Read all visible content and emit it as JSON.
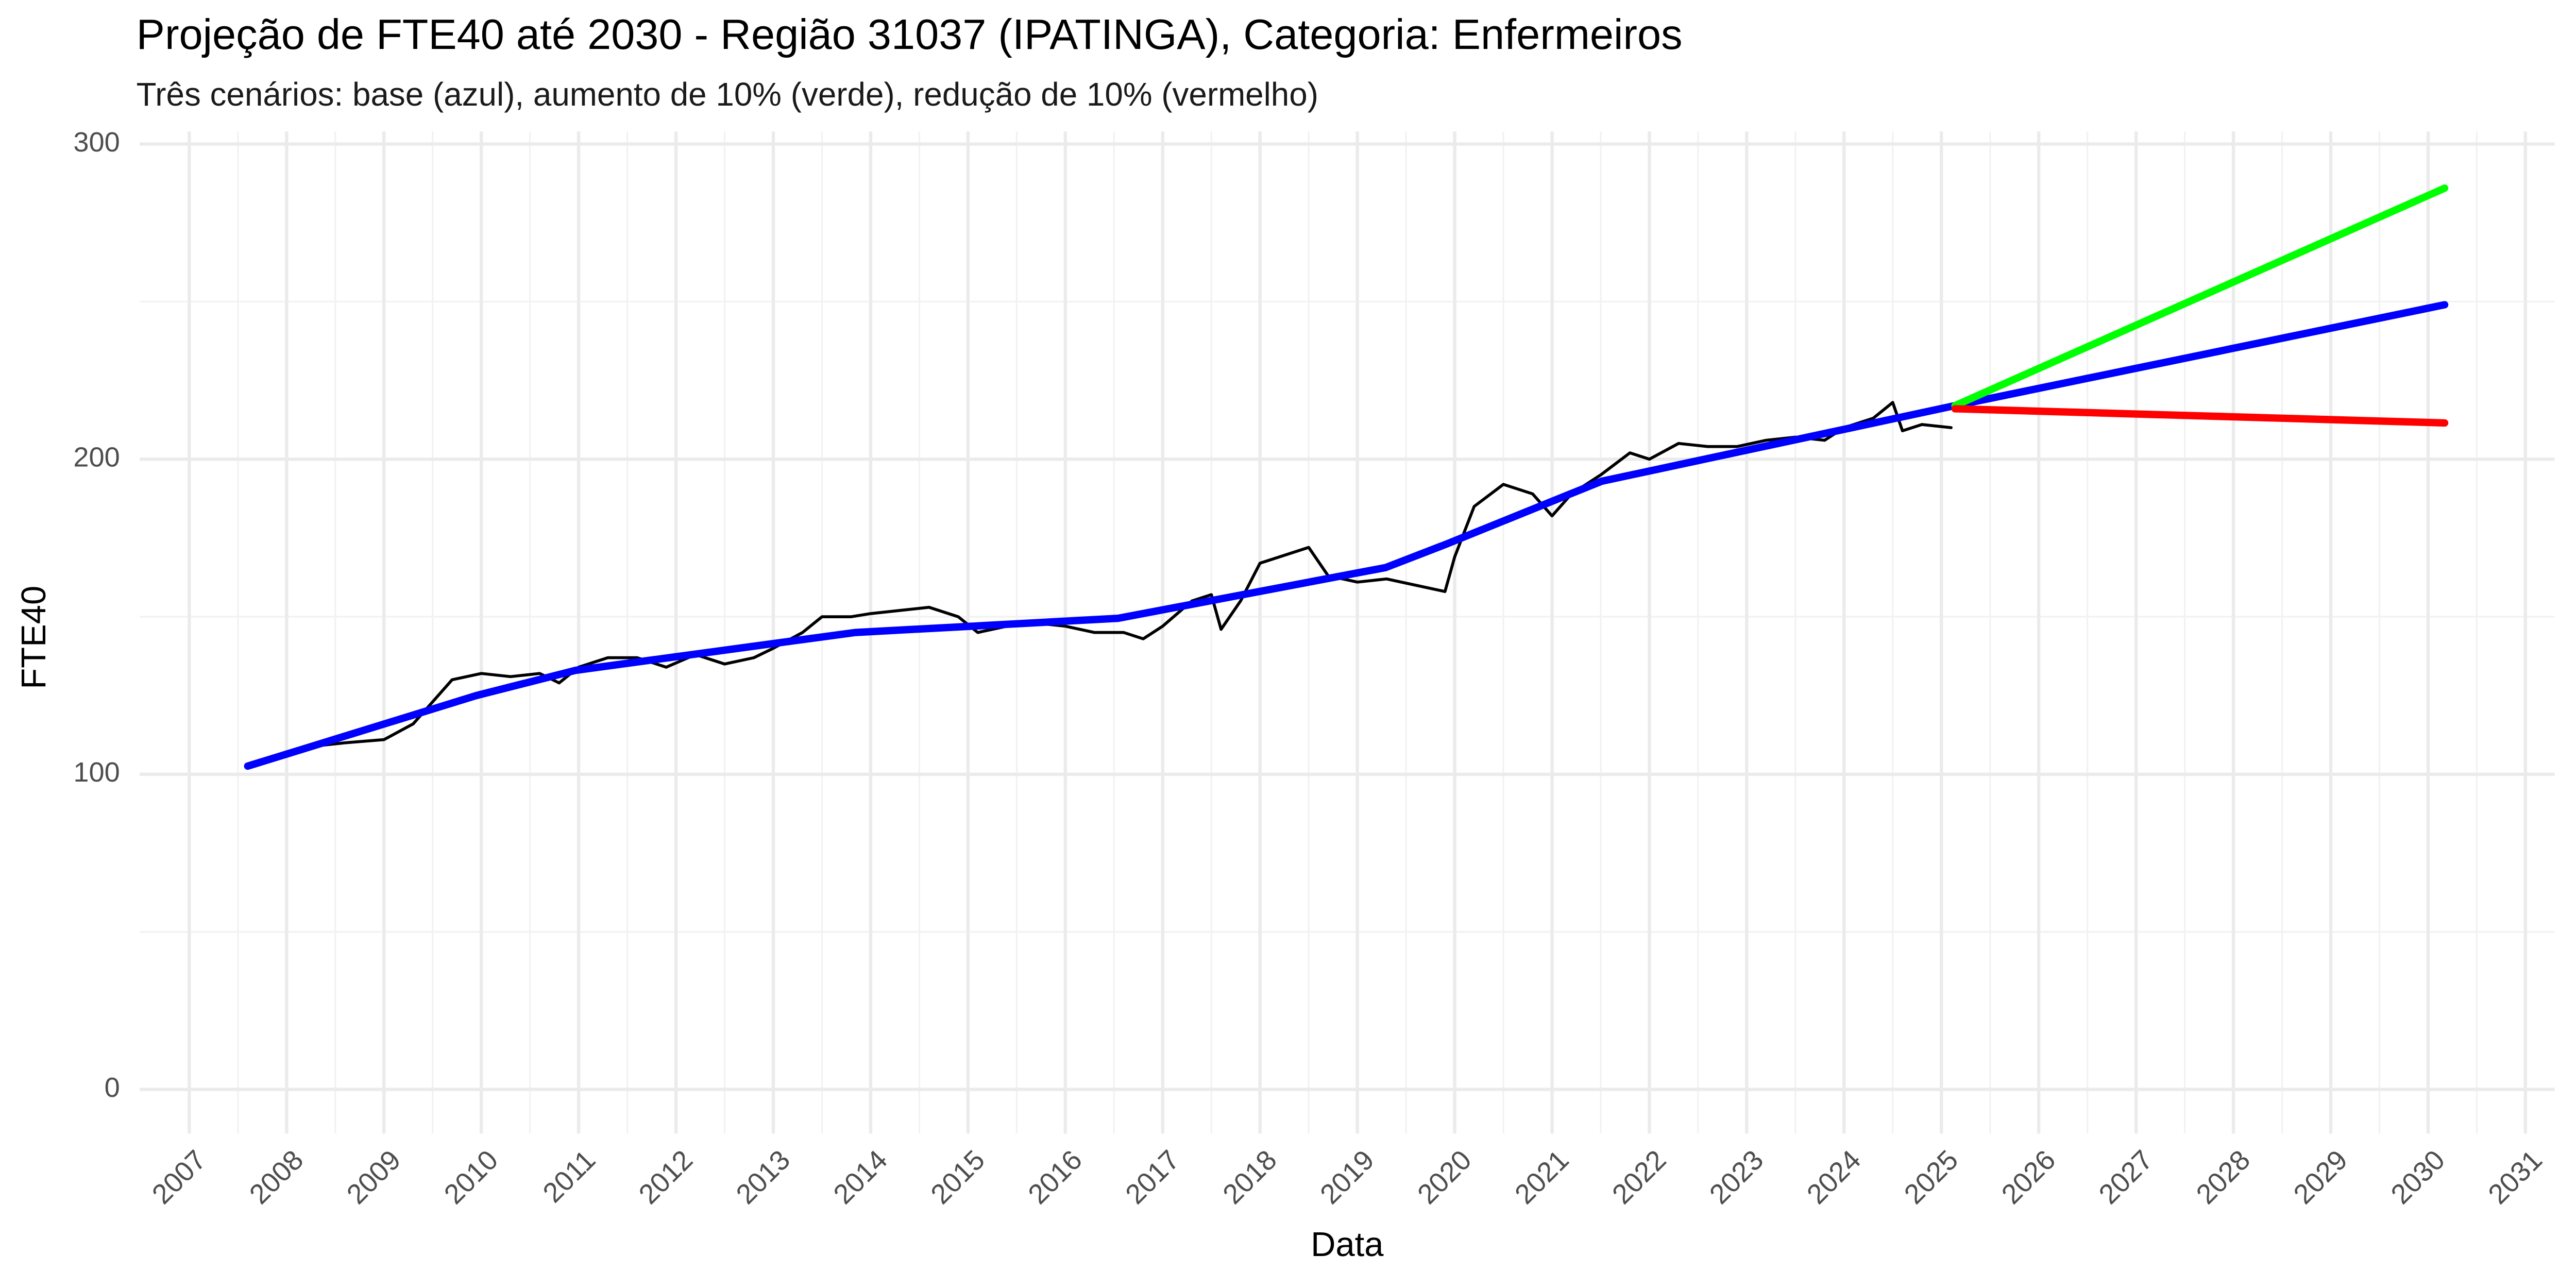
{
  "chart_data": {
    "type": "line",
    "title": "Projeção de FTE40 até 2030 - Região 31037 (IPATINGA), Categoria: Enfermeiros",
    "subtitle": "Três cenários: base (azul), aumento de 10% (verde), redução de 10% (vermelho)",
    "x_label": "Data",
    "y_label": "FTE40",
    "xlim": [
      2006.49,
      2031.3
    ],
    "xticks": [
      2007,
      2008,
      2009,
      2010,
      2011,
      2012,
      2013,
      2014,
      2015,
      2016,
      2017,
      2018,
      2019,
      2020,
      2021,
      2022,
      2023,
      2024,
      2025,
      2026,
      2027,
      2028,
      2029,
      2030,
      2031
    ],
    "ylim": [
      -14,
      304
    ],
    "yticks": [
      0,
      100,
      200,
      300
    ],
    "grid": true,
    "series": [
      {
        "color": "#000000",
        "x": [
          2007.6,
          2008.0,
          2008.3,
          2008.6,
          2009.0,
          2009.3,
          2009.5,
          2009.7,
          2010.0,
          2010.3,
          2010.6,
          2010.8,
          2011.0,
          2011.3,
          2011.6,
          2011.9,
          2012.2,
          2012.5,
          2012.8,
          2013.0,
          2013.3,
          2013.5,
          2013.8,
          2014.0,
          2014.3,
          2014.6,
          2014.9,
          2015.1,
          2015.4,
          2015.7,
          2016.0,
          2016.3,
          2016.6,
          2016.8,
          2017.0,
          2017.3,
          2017.5,
          2017.6,
          2017.8,
          2018.0,
          2018.2,
          2018.5,
          2018.7,
          2019.0,
          2019.3,
          2019.6,
          2019.9,
          2020.0,
          2020.2,
          2020.5,
          2020.8,
          2021.0,
          2021.2,
          2021.5,
          2021.8,
          2022.0,
          2022.3,
          2022.6,
          2022.9,
          2023.2,
          2023.5,
          2023.8,
          2024.0,
          2024.3,
          2024.5,
          2024.6,
          2024.8,
          2025.1
        ],
        "values": [
          102.6,
          105.7,
          109,
          110,
          111,
          116,
          123,
          130,
          132,
          131,
          132,
          129,
          134,
          137,
          137,
          134,
          138,
          135,
          137,
          140,
          145,
          150,
          150,
          151,
          152,
          153,
          150,
          145,
          147,
          148,
          147,
          145,
          145,
          143,
          147,
          155,
          157,
          146,
          155,
          167,
          169,
          172,
          163,
          161,
          162,
          160,
          158,
          169,
          185,
          192,
          189,
          182,
          189,
          195,
          202,
          200,
          205,
          204,
          204,
          206,
          207,
          206,
          210,
          213,
          218,
          209,
          211,
          210
        ]
      },
      {
        "color": "#0000ff",
        "x": [
          2007.6,
          2009.95,
          2010.97,
          2013.84,
          2016.54,
          2019.29,
          2019.91,
          2021.51,
          2025.14,
          2030.17
        ],
        "values": [
          102.6,
          125,
          133,
          145,
          149.5,
          165.6,
          173,
          193,
          217,
          249
        ]
      },
      {
        "color": "#00ff00",
        "x": [
          2025.14,
          2030.17
        ],
        "values": [
          217,
          286
        ]
      },
      {
        "color": "#ff0000",
        "x": [
          2025.14,
          2030.17
        ],
        "values": [
          216,
          211.5
        ]
      }
    ]
  }
}
